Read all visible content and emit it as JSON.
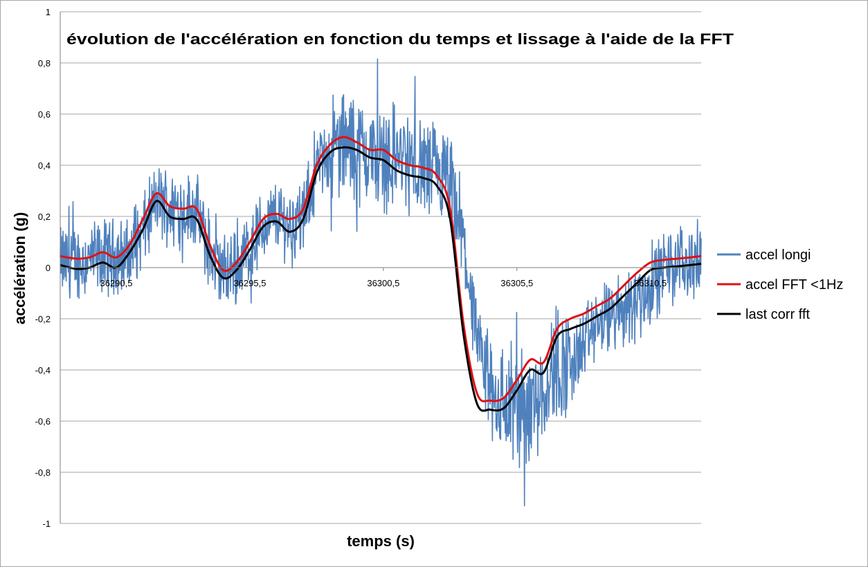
{
  "chart_data": {
    "type": "line",
    "title": "évolution de l'accélération en fonction du temps et lissage à l'aide de la FFT",
    "xlabel": "temps (s)",
    "ylabel": "accélération (g)",
    "xlim": [
      36288.4,
      36312.4
    ],
    "ylim": [
      -1,
      1
    ],
    "y_ticks": [
      "1",
      "0,8",
      "0,6",
      "0,4",
      "0,2",
      "0",
      "-0,2",
      "-0,4",
      "-0,6",
      "-0,8",
      "-1"
    ],
    "x_ticks": [
      {
        "label": "36290,5",
        "value": 36290.5
      },
      {
        "label": "36295,5",
        "value": 36295.5
      },
      {
        "label": "36300,5",
        "value": 36300.5
      },
      {
        "label": "36305,5",
        "value": 36305.5
      },
      {
        "label": "36310,5",
        "value": 36310.5
      }
    ],
    "grid": "horizontal",
    "legend_position": "right",
    "series": [
      {
        "name": "accel longi",
        "color": "#4f81bd",
        "noisy": true,
        "x": [
          36288.4,
          36289.0,
          36290.0,
          36290.5,
          36291.0,
          36291.5,
          36292.0,
          36292.5,
          36293.0,
          36293.5,
          36294.0,
          36294.5,
          36295.0,
          36295.5,
          36296.0,
          36296.5,
          36297.0,
          36297.5,
          36298.0,
          36298.5,
          36299.0,
          36299.5,
          36300.0,
          36300.5,
          36301.0,
          36301.5,
          36302.0,
          36302.5,
          36303.0,
          36303.5,
          36304.0,
          36304.5,
          36305.0,
          36305.5,
          36306.0,
          36306.5,
          36307.0,
          36307.5,
          36308.0,
          36308.5,
          36309.0,
          36309.5,
          36310.0,
          36310.5,
          36311.0,
          36311.5,
          36312.0,
          36312.4
        ],
        "y": [
          0.02,
          0.02,
          0.04,
          0.05,
          0.04,
          0.14,
          0.26,
          0.24,
          0.23,
          0.22,
          0.05,
          -0.02,
          0.0,
          0.08,
          0.16,
          0.2,
          0.17,
          0.19,
          0.38,
          0.46,
          0.49,
          0.46,
          0.44,
          0.43,
          0.44,
          0.4,
          0.38,
          0.36,
          0.31,
          0.1,
          -0.3,
          -0.46,
          -0.54,
          -0.56,
          -0.54,
          -0.46,
          -0.38,
          -0.39,
          -0.3,
          -0.22,
          -0.2,
          -0.16,
          -0.12,
          -0.08,
          0.0,
          0.02,
          0.02,
          0.03
        ]
      },
      {
        "name": "accel FFT <1Hz",
        "color": "#e01010",
        "x": [
          36288.4,
          36289.0,
          36289.5,
          36290.0,
          36290.5,
          36291.0,
          36291.5,
          36292.0,
          36292.5,
          36293.0,
          36293.5,
          36294.0,
          36294.5,
          36295.0,
          36295.5,
          36296.0,
          36296.5,
          36297.0,
          36297.5,
          36298.0,
          36298.5,
          36299.0,
          36299.5,
          36300.0,
          36300.5,
          36301.0,
          36301.5,
          36302.0,
          36302.5,
          36303.0,
          36303.5,
          36304.0,
          36304.5,
          36305.0,
          36305.5,
          36306.0,
          36306.5,
          36307.0,
          36307.5,
          36308.0,
          36308.5,
          36309.0,
          36309.5,
          36310.0,
          36310.5,
          36311.0,
          36311.5,
          36312.0,
          36312.4
        ],
        "y": [
          0.045,
          0.035,
          0.04,
          0.06,
          0.04,
          0.09,
          0.19,
          0.29,
          0.24,
          0.23,
          0.23,
          0.09,
          -0.01,
          0.02,
          0.1,
          0.19,
          0.21,
          0.19,
          0.23,
          0.4,
          0.48,
          0.51,
          0.49,
          0.46,
          0.46,
          0.42,
          0.4,
          0.39,
          0.36,
          0.23,
          -0.22,
          -0.49,
          -0.52,
          -0.51,
          -0.44,
          -0.36,
          -0.37,
          -0.24,
          -0.2,
          -0.18,
          -0.15,
          -0.12,
          -0.07,
          -0.02,
          0.02,
          0.03,
          0.035,
          0.04,
          0.045
        ]
      },
      {
        "name": "last corr fft",
        "color": "#000000",
        "x": [
          36288.4,
          36289.0,
          36289.5,
          36290.0,
          36290.5,
          36291.0,
          36291.5,
          36292.0,
          36292.5,
          36293.0,
          36293.5,
          36294.0,
          36294.5,
          36295.0,
          36295.5,
          36296.0,
          36296.5,
          36297.0,
          36297.5,
          36298.0,
          36298.5,
          36299.0,
          36299.5,
          36300.0,
          36300.5,
          36301.0,
          36301.5,
          36302.0,
          36302.5,
          36303.0,
          36303.5,
          36304.0,
          36304.5,
          36305.0,
          36305.5,
          36306.0,
          36306.5,
          36307.0,
          36307.5,
          36308.0,
          36308.5,
          36309.0,
          36309.5,
          36310.0,
          36310.5,
          36311.0,
          36311.5,
          36312.0,
          36312.4
        ],
        "y": [
          0.01,
          -0.005,
          0.0,
          0.02,
          0.0,
          0.06,
          0.15,
          0.26,
          0.2,
          0.19,
          0.19,
          0.05,
          -0.04,
          -0.01,
          0.07,
          0.16,
          0.18,
          0.14,
          0.19,
          0.37,
          0.45,
          0.47,
          0.46,
          0.43,
          0.42,
          0.38,
          0.36,
          0.35,
          0.32,
          0.19,
          -0.26,
          -0.53,
          -0.555,
          -0.55,
          -0.48,
          -0.4,
          -0.41,
          -0.27,
          -0.24,
          -0.22,
          -0.19,
          -0.16,
          -0.11,
          -0.06,
          -0.01,
          0.0,
          0.005,
          0.01,
          0.015
        ]
      }
    ]
  }
}
